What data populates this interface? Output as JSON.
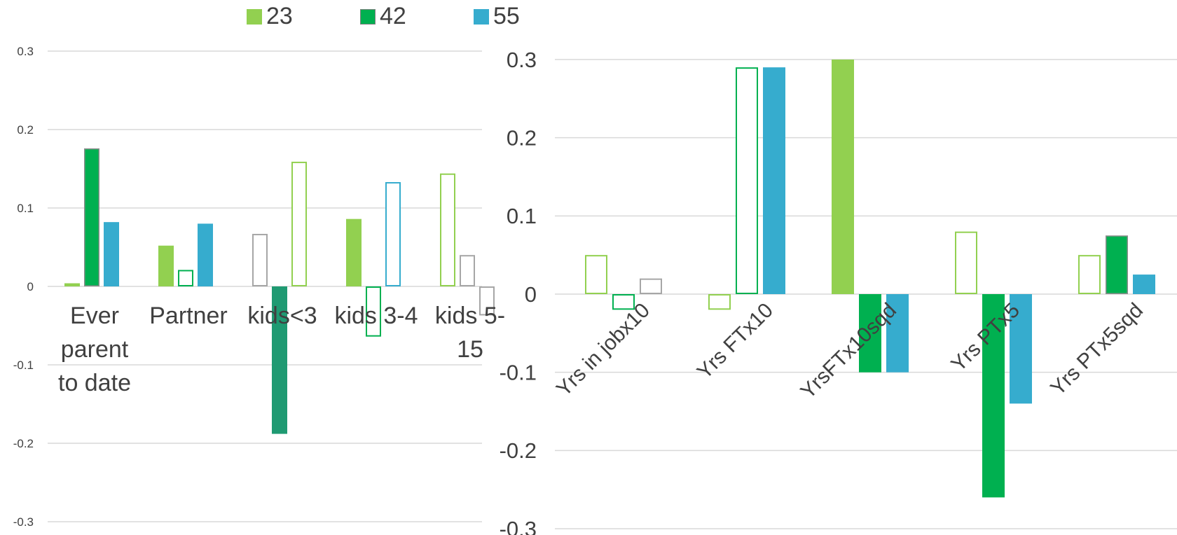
{
  "legend": {
    "items": [
      {
        "label": "23",
        "color": "#92d050"
      },
      {
        "label": "42",
        "color": "#00b050"
      },
      {
        "label": "55",
        "color": "#36acce"
      }
    ]
  },
  "chart_data": [
    {
      "type": "bar",
      "categories": [
        [
          "Ever",
          "parent",
          "to date"
        ],
        [
          "Partner"
        ],
        [
          "kids<3"
        ],
        [
          "kids 3-4"
        ],
        [
          "kids 5-",
          "15"
        ]
      ],
      "series": [
        {
          "name": "23",
          "values": [
            0.004,
            0.052,
            0.067,
            0.086,
            0.144
          ],
          "styles": [
            "filled",
            "filled",
            "outline-gray",
            "filled",
            "outline"
          ]
        },
        {
          "name": "42",
          "values": [
            0.176,
            0.021,
            -0.188,
            -0.064,
            0.04
          ],
          "styles": [
            "filled-border",
            "outline",
            "filled-dark",
            "outline",
            "outline-gray"
          ]
        },
        {
          "name": "55",
          "values": [
            0.082,
            0.08,
            0.159,
            0.133,
            -0.037
          ],
          "styles": [
            "filled",
            "filled",
            "outline-light",
            "outline",
            "outline-gray"
          ]
        }
      ],
      "yticks": [
        "0.3",
        "0.2",
        "0.1",
        "0",
        "-0.1",
        "-0.2",
        "-0.3"
      ],
      "ylim": [
        -0.3,
        0.3
      ],
      "grid": true
    },
    {
      "type": "bar",
      "categories": [
        "Yrs in jobx10",
        "Yrs FTx10",
        "YrsFTx10sqd",
        "Yrs PTx5",
        "Yrs PTx5sqd"
      ],
      "series": [
        {
          "name": "23",
          "values": [
            0.05,
            -0.02,
            0.3,
            0.08,
            0.05
          ],
          "styles": [
            "outline",
            "outline",
            "filled",
            "outline",
            "outline"
          ]
        },
        {
          "name": "42",
          "values": [
            -0.02,
            0.29,
            -0.1,
            -0.26,
            0.075
          ],
          "styles": [
            "outline",
            "outline",
            "filled",
            "filled",
            "filled-border"
          ]
        },
        {
          "name": "55",
          "values": [
            0.02,
            0.29,
            -0.1,
            -0.14,
            0.025
          ],
          "styles": [
            "outline-gray",
            "filled",
            "filled",
            "filled",
            "filled"
          ]
        }
      ],
      "yticks": [
        "0.3",
        "0.2",
        "0.1",
        "0",
        "-0.1",
        "-0.2",
        "-0.3"
      ],
      "ylim": [
        -0.3,
        0.3
      ],
      "grid": true
    }
  ]
}
